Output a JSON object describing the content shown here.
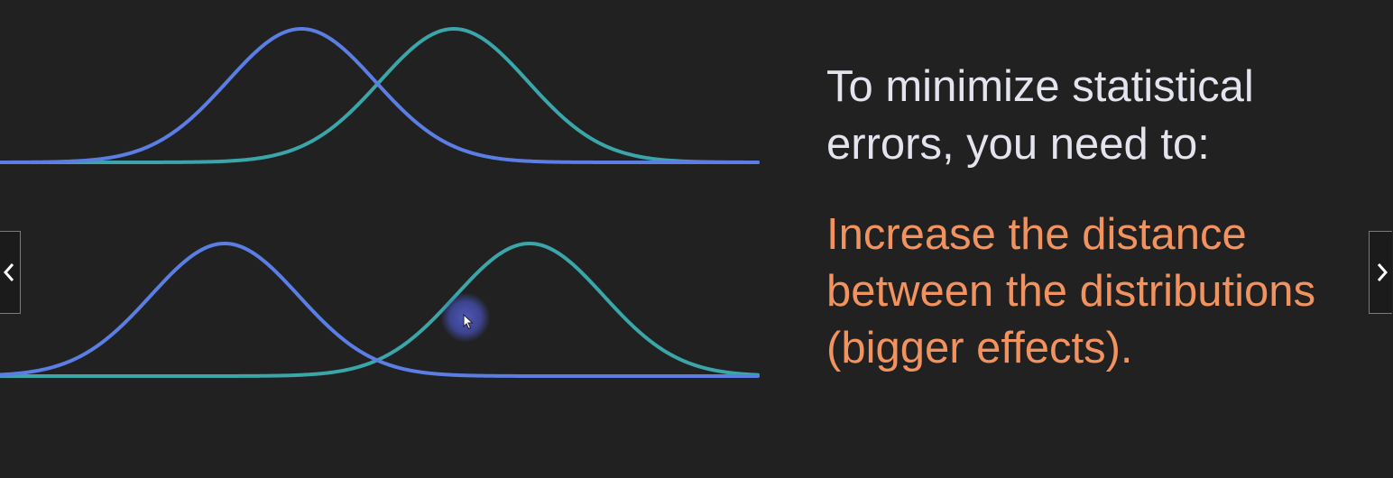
{
  "slide": {
    "heading": "To minimize statistical\nerrors, you need to:",
    "highlight": "Increase the distance\nbetween the distributions\n(bigger effects).",
    "heading_color": "#e3e4ee",
    "highlight_color": "#f2935f"
  },
  "curves": {
    "null_color": "#5b7ee5",
    "alt_color": "#3aa6a9"
  },
  "navigation": {
    "prev_icon": "chevron-left-icon",
    "next_icon": "chevron-right-icon"
  },
  "pointer": {
    "icon": "mouse-cursor-icon",
    "halo_color": "#4f5bbf"
  }
}
